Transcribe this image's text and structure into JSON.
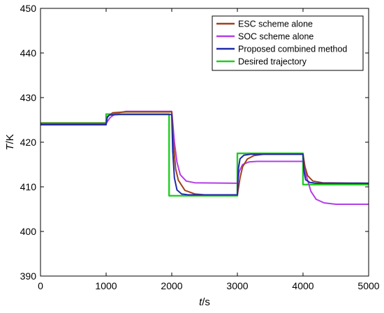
{
  "chart_data": {
    "type": "line",
    "title": "",
    "xlabel": {
      "italic": "t",
      "unit": "/s"
    },
    "ylabel": {
      "italic": "T",
      "unit": "/K"
    },
    "xlim": [
      0,
      5000
    ],
    "ylim": [
      390,
      450
    ],
    "xticks": [
      0,
      1000,
      2000,
      3000,
      4000,
      5000
    ],
    "yticks": [
      390,
      400,
      410,
      420,
      430,
      440,
      450
    ],
    "grid": false,
    "legend_position": "top-right",
    "series": [
      {
        "name": "ESC scheme alone",
        "color": "#a0401a",
        "style": "solid",
        "points": [
          [
            0,
            424.2
          ],
          [
            1000,
            424.2
          ],
          [
            1020,
            425.8
          ],
          [
            1100,
            426.6
          ],
          [
            1300,
            426.8
          ],
          [
            2000,
            426.8
          ],
          [
            2030,
            419
          ],
          [
            2060,
            414
          ],
          [
            2100,
            411.5
          ],
          [
            2200,
            409.2
          ],
          [
            2350,
            408.4
          ],
          [
            2500,
            408.2
          ],
          [
            3000,
            408.2
          ],
          [
            3040,
            412
          ],
          [
            3080,
            414.5
          ],
          [
            3150,
            416.2
          ],
          [
            3250,
            417
          ],
          [
            3400,
            417.3
          ],
          [
            4000,
            417.3
          ],
          [
            4030,
            414.5
          ],
          [
            4070,
            412.5
          ],
          [
            4150,
            411.3
          ],
          [
            4300,
            410.9
          ],
          [
            5000,
            410.8
          ]
        ]
      },
      {
        "name": "SOC scheme alone",
        "color": "#b43ce6",
        "style": "solid",
        "points": [
          [
            0,
            424.2
          ],
          [
            1000,
            424.2
          ],
          [
            1060,
            425.5
          ],
          [
            1150,
            426.5
          ],
          [
            1300,
            426.9
          ],
          [
            2000,
            426.9
          ],
          [
            2040,
            420
          ],
          [
            2080,
            415.5
          ],
          [
            2130,
            412.7
          ],
          [
            2220,
            411.3
          ],
          [
            2350,
            410.9
          ],
          [
            3000,
            410.8
          ],
          [
            3030,
            413.5
          ],
          [
            3080,
            415
          ],
          [
            3180,
            415.6
          ],
          [
            3300,
            415.7
          ],
          [
            4000,
            415.7
          ],
          [
            4050,
            412.5
          ],
          [
            4120,
            409
          ],
          [
            4200,
            407.2
          ],
          [
            4320,
            406.4
          ],
          [
            4500,
            406.1
          ],
          [
            5000,
            406.1
          ]
        ]
      },
      {
        "name": "Proposed combined method",
        "color": "#1e2aa8",
        "style": "solid",
        "points": [
          [
            0,
            423.9
          ],
          [
            1000,
            423.9
          ],
          [
            1015,
            425.5
          ],
          [
            1050,
            426.1
          ],
          [
            1200,
            426.2
          ],
          [
            2000,
            426.2
          ],
          [
            2015,
            418
          ],
          [
            2040,
            412
          ],
          [
            2080,
            409.3
          ],
          [
            2150,
            408.4
          ],
          [
            2250,
            408.2
          ],
          [
            3000,
            408.2
          ],
          [
            3015,
            414
          ],
          [
            3040,
            416.3
          ],
          [
            3100,
            417.1
          ],
          [
            3200,
            417.3
          ],
          [
            4000,
            417.3
          ],
          [
            4015,
            413.5
          ],
          [
            4040,
            411.6
          ],
          [
            4100,
            411
          ],
          [
            4200,
            410.8
          ],
          [
            5000,
            410.8
          ]
        ]
      },
      {
        "name": "Desired trajectory",
        "color": "#22cc22",
        "style": "solid",
        "points": [
          [
            0,
            424.3
          ],
          [
            1000,
            424.3
          ],
          [
            1000,
            426.3
          ],
          [
            1960,
            426.3
          ],
          [
            1960,
            408
          ],
          [
            3000,
            408
          ],
          [
            3000,
            417.5
          ],
          [
            4000,
            417.5
          ],
          [
            4000,
            410.5
          ],
          [
            5000,
            410.5
          ]
        ]
      }
    ]
  }
}
